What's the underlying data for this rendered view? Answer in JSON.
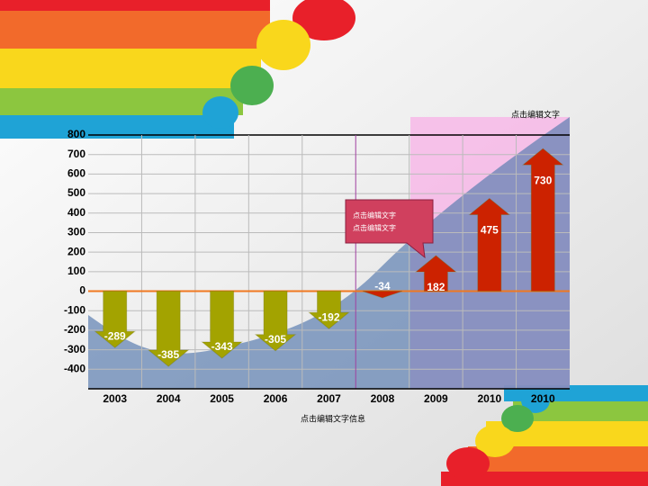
{
  "chart_data": {
    "type": "arrow-bar",
    "subtitle": "点击编辑文字",
    "x_label": "点击编辑文字信息",
    "annotations": [
      "点击编辑文字",
      "点击编辑文字"
    ],
    "categories": [
      "2003",
      "2004",
      "2005",
      "2006",
      "2007",
      "2008",
      "2009",
      "2010",
      "2010"
    ],
    "values": [
      -289,
      -385,
      -343,
      -305,
      -192,
      -34,
      182,
      475,
      730
    ],
    "colors": [
      "#a3a300",
      "#a3a300",
      "#a3a300",
      "#a3a300",
      "#a3a300",
      "#cc2200",
      "#cc2200",
      "#cc2200",
      "#cc2200"
    ],
    "ylim": [
      -500,
      800
    ],
    "yticks": [
      -400,
      -300,
      -200,
      -100,
      0,
      100,
      200,
      300,
      400,
      500,
      600,
      700,
      800
    ],
    "grid": true
  }
}
